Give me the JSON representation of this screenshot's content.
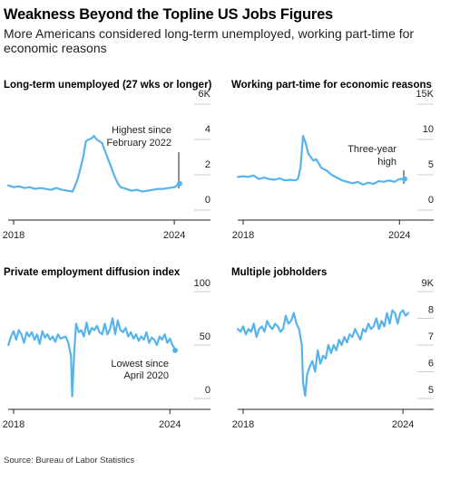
{
  "header": {
    "title": "Weakness Beyond the Topline US Jobs Figures",
    "subtitle": "More Americans considered long-term unemployed, working part-time for economic reasons"
  },
  "footer": {
    "source": "Source: Bureau of Labor Statistics"
  },
  "colors": {
    "line": "#56b4ec",
    "axis": "#222222",
    "grid": "#bbbbbb"
  },
  "chart_data": [
    {
      "type": "line",
      "title": "Long-term unemployed (27 wks or longer)",
      "x_ticks": [
        "2018",
        "2024"
      ],
      "y_ticks": [
        "0",
        "2",
        "4",
        "6K"
      ],
      "ylim": [
        0,
        6
      ],
      "xlim": [
        2018,
        2024.2
      ],
      "annotation": {
        "lines": [
          "Highest since",
          "February 2022"
        ],
        "x": 2024.2,
        "y": 1.5
      },
      "series": [
        {
          "x": [
            2017.8,
            2018.0,
            2018.2,
            2018.4,
            2018.6,
            2018.8,
            2019.0,
            2019.2,
            2019.4,
            2019.6,
            2019.8,
            2020.0,
            2020.2,
            2020.3,
            2020.4,
            2020.5,
            2020.6,
            2020.7,
            2020.8,
            2020.9,
            2021.0,
            2021.1,
            2021.2,
            2021.3,
            2021.4,
            2021.5,
            2021.6,
            2021.7,
            2021.8,
            2021.9,
            2022.0,
            2022.2,
            2022.4,
            2022.6,
            2022.8,
            2023.0,
            2023.2,
            2023.4,
            2023.6,
            2023.8,
            2024.0,
            2024.1,
            2024.2
          ],
          "y": [
            1.4,
            1.3,
            1.35,
            1.25,
            1.3,
            1.2,
            1.25,
            1.2,
            1.15,
            1.25,
            1.15,
            1.1,
            1.05,
            1.4,
            1.8,
            2.4,
            3.0,
            3.9,
            4.0,
            4.05,
            4.2,
            4.0,
            3.9,
            3.8,
            3.4,
            3.0,
            2.6,
            2.2,
            1.8,
            1.5,
            1.3,
            1.2,
            1.1,
            1.15,
            1.05,
            1.1,
            1.15,
            1.2,
            1.2,
            1.25,
            1.3,
            1.4,
            1.5
          ]
        }
      ]
    },
    {
      "type": "line",
      "title": "Working part-time for economic reasons",
      "x_ticks": [
        "2018",
        "2024"
      ],
      "y_ticks": [
        "0",
        "5",
        "10",
        "15K"
      ],
      "ylim": [
        0,
        15
      ],
      "xlim": [
        2018,
        2024.2
      ],
      "annotation": {
        "lines": [
          "Three-year",
          "high"
        ],
        "x": 2024.2,
        "y": 4.4
      },
      "series": [
        {
          "x": [
            2017.8,
            2018.0,
            2018.2,
            2018.4,
            2018.6,
            2018.8,
            2019.0,
            2019.2,
            2019.4,
            2019.6,
            2019.8,
            2020.0,
            2020.1,
            2020.2,
            2020.3,
            2020.4,
            2020.5,
            2020.6,
            2020.7,
            2020.8,
            2020.9,
            2021.0,
            2021.2,
            2021.4,
            2021.6,
            2021.8,
            2022.0,
            2022.2,
            2022.4,
            2022.6,
            2022.8,
            2023.0,
            2023.2,
            2023.4,
            2023.6,
            2023.8,
            2024.0,
            2024.2
          ],
          "y": [
            4.7,
            4.8,
            4.7,
            4.9,
            4.4,
            4.6,
            4.4,
            4.3,
            4.5,
            4.2,
            4.3,
            4.2,
            4.4,
            6.0,
            10.5,
            9.5,
            8.0,
            7.5,
            7.0,
            7.2,
            6.6,
            6.0,
            5.6,
            5.0,
            4.6,
            4.2,
            4.0,
            3.8,
            4.0,
            3.6,
            3.9,
            3.7,
            4.1,
            4.0,
            4.2,
            4.0,
            4.4,
            4.4
          ]
        }
      ]
    },
    {
      "type": "line",
      "title": "Private employment diffusion index",
      "x_ticks": [
        "2018",
        "2024"
      ],
      "y_ticks": [
        "0",
        "50",
        "100"
      ],
      "ylim": [
        0,
        100
      ],
      "xlim": [
        2018,
        2024.2
      ],
      "annotation": {
        "lines": [
          "Lowest since",
          "April 2020"
        ],
        "x": 2024.2,
        "y": 45
      },
      "series": [
        {
          "x": [
            2017.8,
            2017.9,
            2018.0,
            2018.1,
            2018.2,
            2018.3,
            2018.4,
            2018.5,
            2018.6,
            2018.7,
            2018.8,
            2018.9,
            2019.0,
            2019.1,
            2019.2,
            2019.3,
            2019.4,
            2019.5,
            2019.6,
            2019.7,
            2019.8,
            2019.9,
            2020.0,
            2020.1,
            2020.2,
            2020.25,
            2020.33,
            2020.4,
            2020.5,
            2020.6,
            2020.7,
            2020.8,
            2020.9,
            2021.0,
            2021.1,
            2021.2,
            2021.3,
            2021.4,
            2021.5,
            2021.6,
            2021.7,
            2021.8,
            2021.9,
            2022.0,
            2022.1,
            2022.2,
            2022.3,
            2022.4,
            2022.5,
            2022.6,
            2022.7,
            2022.8,
            2022.9,
            2023.0,
            2023.1,
            2023.2,
            2023.3,
            2023.4,
            2023.5,
            2023.6,
            2023.7,
            2023.8,
            2023.9,
            2024.0,
            2024.1,
            2024.2
          ],
          "y": [
            50,
            58,
            63,
            55,
            64,
            60,
            52,
            62,
            58,
            62,
            55,
            60,
            51,
            63,
            57,
            60,
            55,
            58,
            53,
            60,
            56,
            57,
            58,
            52,
            40,
            2,
            45,
            70,
            62,
            64,
            58,
            71,
            60,
            66,
            64,
            68,
            62,
            60,
            70,
            60,
            65,
            75,
            60,
            73,
            64,
            62,
            66,
            58,
            62,
            56,
            60,
            54,
            58,
            55,
            62,
            52,
            57,
            55,
            50,
            58,
            55,
            60,
            52,
            56,
            50,
            46
          ]
        }
      ]
    },
    {
      "type": "line",
      "title": "Multiple jobholders",
      "x_ticks": [
        "2018",
        "2024"
      ],
      "y_ticks": [
        "5",
        "6",
        "7",
        "8",
        "9K"
      ],
      "ylim": [
        5,
        9
      ],
      "xlim": [
        2018,
        2024.2
      ],
      "series": [
        {
          "x": [
            2017.8,
            2017.9,
            2018.0,
            2018.1,
            2018.2,
            2018.3,
            2018.4,
            2018.5,
            2018.6,
            2018.7,
            2018.8,
            2018.9,
            2019.0,
            2019.1,
            2019.2,
            2019.3,
            2019.4,
            2019.5,
            2019.6,
            2019.7,
            2019.8,
            2019.9,
            2020.0,
            2020.1,
            2020.2,
            2020.25,
            2020.33,
            2020.4,
            2020.5,
            2020.6,
            2020.7,
            2020.8,
            2020.9,
            2021.0,
            2021.1,
            2021.2,
            2021.3,
            2021.4,
            2021.5,
            2021.6,
            2021.7,
            2021.8,
            2021.9,
            2022.0,
            2022.1,
            2022.2,
            2022.3,
            2022.4,
            2022.5,
            2022.6,
            2022.7,
            2022.8,
            2022.9,
            2023.0,
            2023.1,
            2023.2,
            2023.3,
            2023.4,
            2023.5,
            2023.6,
            2023.7,
            2023.8,
            2023.9,
            2024.0,
            2024.1,
            2024.2
          ],
          "y": [
            7.6,
            7.5,
            7.7,
            7.4,
            7.6,
            7.5,
            7.8,
            7.3,
            7.6,
            7.7,
            7.5,
            7.9,
            7.7,
            7.6,
            7.8,
            7.7,
            7.5,
            7.6,
            8.1,
            7.8,
            7.9,
            8.2,
            7.8,
            7.6,
            7.0,
            5.6,
            5.1,
            5.9,
            6.2,
            6.4,
            6.0,
            6.8,
            6.3,
            6.6,
            6.5,
            7.0,
            6.7,
            7.0,
            6.8,
            7.2,
            7.0,
            7.3,
            7.1,
            7.4,
            7.3,
            7.6,
            7.4,
            7.2,
            7.6,
            7.5,
            7.8,
            7.6,
            7.7,
            8.0,
            7.6,
            7.9,
            7.7,
            8.2,
            7.8,
            8.3,
            8.2,
            7.8,
            8.2,
            8.3,
            8.1,
            8.2
          ]
        }
      ]
    }
  ]
}
